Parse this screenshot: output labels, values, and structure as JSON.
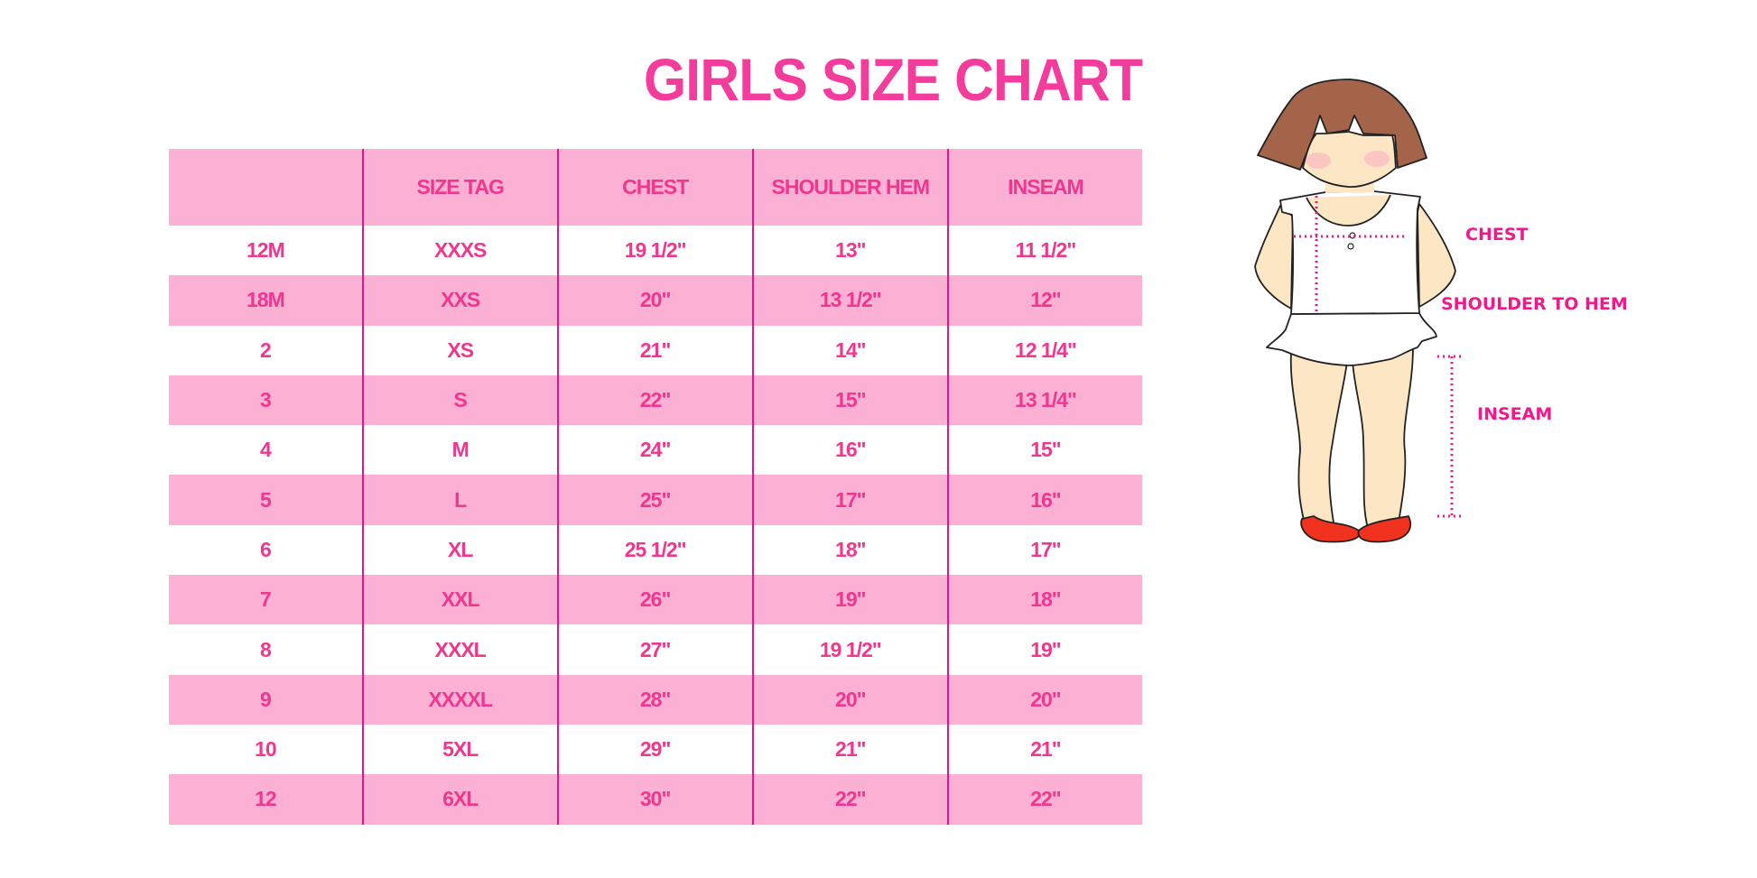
{
  "title": "GIRLS SIZE CHART",
  "table": {
    "headers": [
      "",
      "SIZE TAG",
      "CHEST",
      "SHOULDER HEM",
      "INSEAM"
    ],
    "rows": [
      [
        "12M",
        "XXXS",
        "19 1/2\"",
        "13\"",
        "11 1/2\""
      ],
      [
        "18M",
        "XXS",
        "20\"",
        "13 1/2\"",
        "12\""
      ],
      [
        "2",
        "XS",
        "21\"",
        "14\"",
        "12 1/4\""
      ],
      [
        "3",
        "S",
        "22\"",
        "15\"",
        "13 1/4\""
      ],
      [
        "4",
        "M",
        "24\"",
        "16\"",
        "15\""
      ],
      [
        "5",
        "L",
        "25\"",
        "17\"",
        "16\""
      ],
      [
        "6",
        "XL",
        "25 1/2\"",
        "18\"",
        "17\""
      ],
      [
        "7",
        "XXL",
        "26\"",
        "19\"",
        "18\""
      ],
      [
        "8",
        "XXXL",
        "27\"",
        "19 1/2\"",
        "19\""
      ],
      [
        "9",
        "XXXXL",
        "28\"",
        "20\"",
        "20\""
      ],
      [
        "10",
        "5XL",
        "29\"",
        "21\"",
        "21\""
      ],
      [
        "12",
        "6XL",
        "30\"",
        "22\"",
        "22\""
      ]
    ]
  },
  "figure": {
    "labels": {
      "chest": "CHEST",
      "shoulder": "SHOULDER TO HEM",
      "inseam": "INSEAM"
    }
  },
  "colors": {
    "accent": "#f43c9c",
    "row_band": "#fbb0d4",
    "divider": "#e4148a",
    "hair": "#a4644a",
    "skin": "#fde6c4",
    "shoe": "#f0321e"
  }
}
